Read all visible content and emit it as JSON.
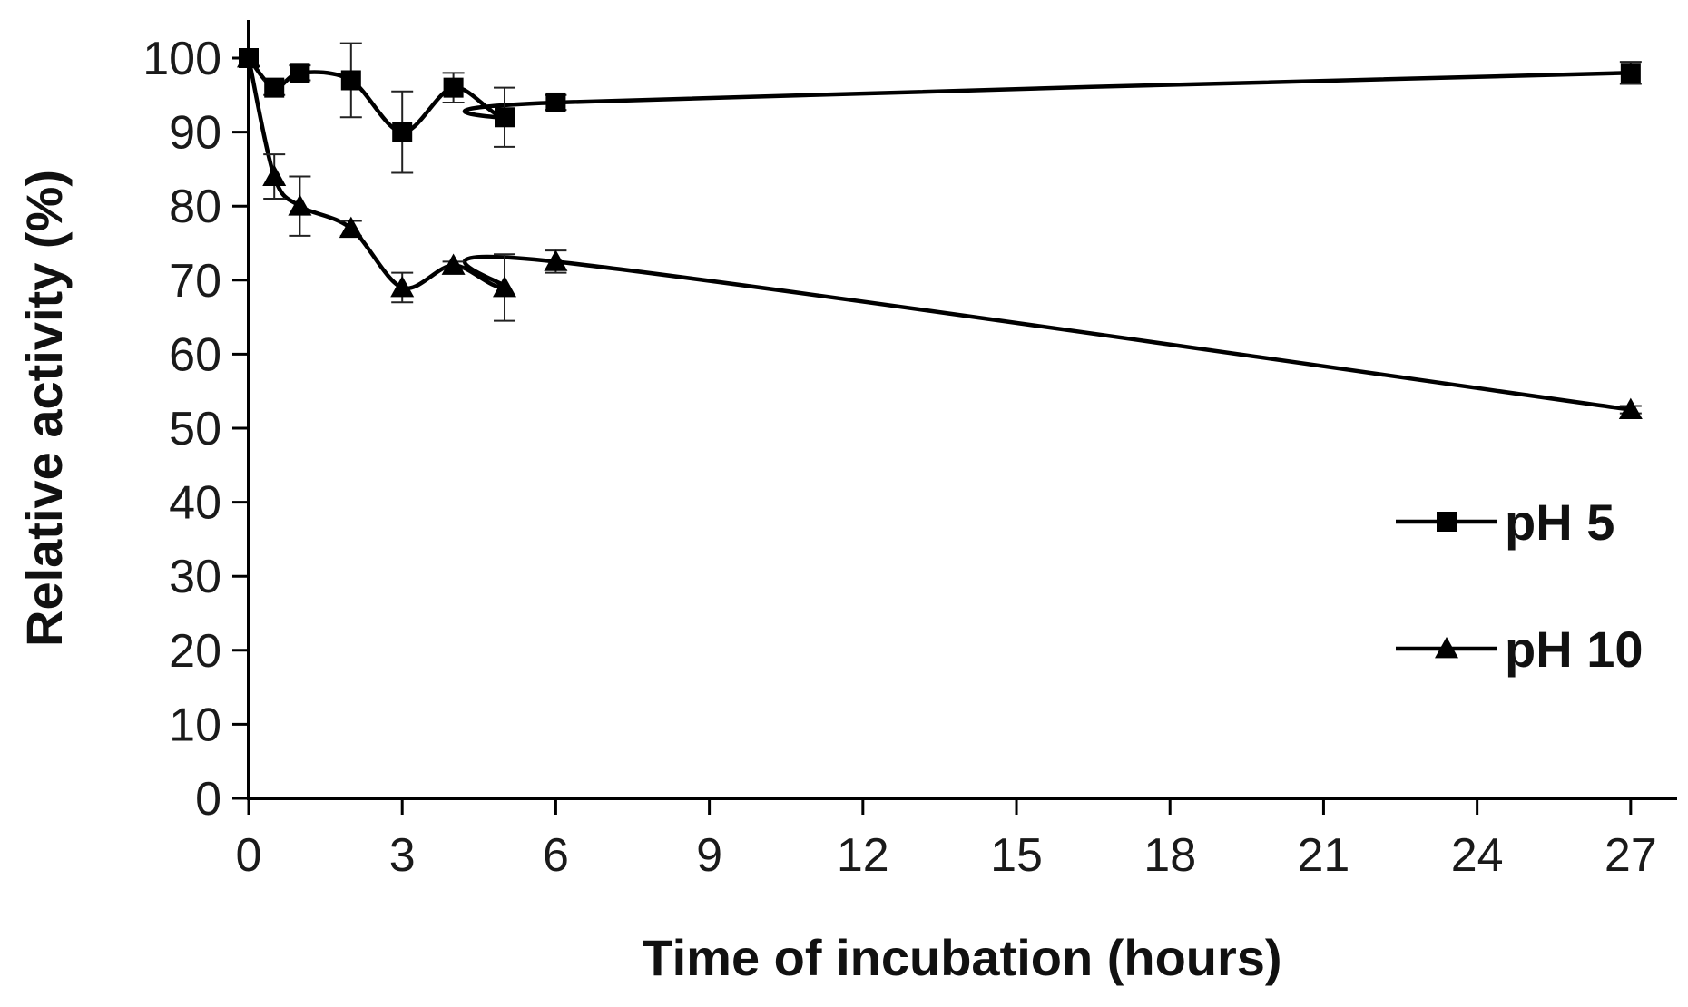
{
  "chart_data": {
    "type": "line",
    "title": "",
    "xlabel": "Time of incubation (hours)",
    "ylabel": "Relative activity (%)",
    "xlim": [
      0,
      27
    ],
    "ylim": [
      0,
      100
    ],
    "xticks": [
      0,
      3,
      6,
      9,
      12,
      15,
      18,
      21,
      24,
      27
    ],
    "yticks": [
      0,
      10,
      20,
      30,
      40,
      50,
      60,
      70,
      80,
      90,
      100
    ],
    "grid": false,
    "legend_position": "right",
    "colors": {
      "line": "#000000",
      "text": "#111111"
    },
    "series": [
      {
        "name": "pH 5",
        "marker": "square",
        "x": [
          0,
          0.5,
          1,
          2,
          3,
          4,
          5,
          6,
          27
        ],
        "values": [
          100,
          96,
          98,
          97,
          90,
          96,
          92,
          94,
          98
        ],
        "errors": [
          0,
          1,
          1,
          5,
          5.5,
          2,
          4,
          1,
          1.5
        ]
      },
      {
        "name": "pH 10",
        "marker": "triangle",
        "x": [
          0,
          0.5,
          1,
          2,
          3,
          4,
          5,
          6,
          27
        ],
        "values": [
          100,
          84,
          80,
          77,
          69,
          72,
          69,
          72.5,
          52.5
        ],
        "errors": [
          0,
          3,
          4,
          1,
          2,
          0.5,
          4.5,
          1.5,
          0.5
        ]
      }
    ]
  }
}
